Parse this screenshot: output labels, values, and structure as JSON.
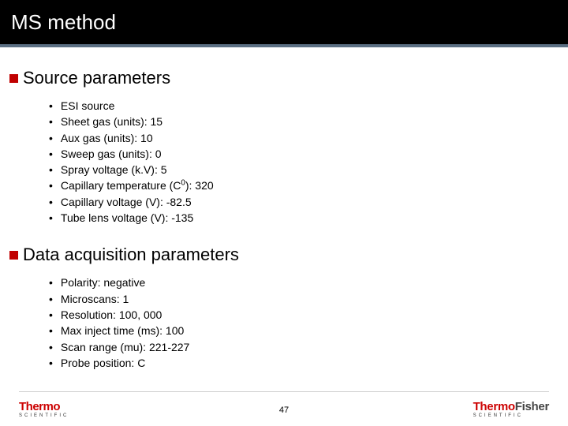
{
  "title": "MS method",
  "sections": [
    {
      "heading": "Source parameters",
      "items": [
        "ESI source",
        "Sheet gas (units): 15",
        "Aux gas (units): 10",
        "Sweep gas (units): 0",
        "Spray voltage (k.V): 5",
        "Capillary temperature (C<sup>0</sup>): 320",
        "Capillary voltage (V): -82.5",
        "Tube lens voltage (V): -135"
      ]
    },
    {
      "heading": "Data acquisition parameters",
      "items": [
        "Polarity: negative",
        "Microscans: 1",
        "Resolution: 100, 000",
        "Max inject time (ms): 100",
        "Scan range (mu): 221-227",
        "Probe position: C"
      ]
    }
  ],
  "page_number": "47",
  "logo_left": {
    "brand": "Thermo",
    "sub": "SCIENTIFIC"
  },
  "logo_right": {
    "brand1": "Thermo",
    "brand2": "Fisher",
    "sub": "SCIENTIFIC"
  },
  "colors": {
    "title_bg": "#000000",
    "title_fg": "#ffffff",
    "separator": "#5a6e82",
    "accent_red": "#c00000",
    "brand_red": "#cc0000",
    "text": "#000000"
  }
}
